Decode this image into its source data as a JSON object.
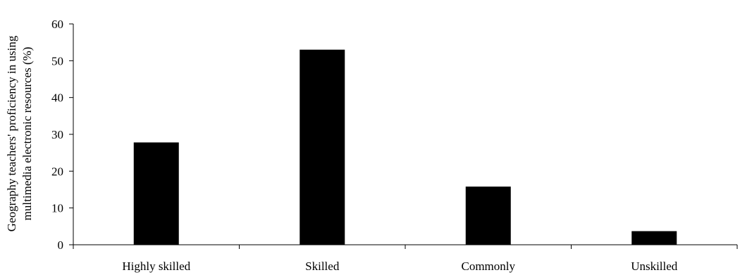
{
  "chart_data": {
    "type": "bar",
    "categories": [
      "Highly skilled",
      "Skilled",
      "Commonly",
      "Unskilled"
    ],
    "values": [
      27.8,
      53.0,
      15.8,
      3.7
    ],
    "title": "",
    "xlabel": "",
    "ylabel_lines": [
      "Geography teachers' proficiency in using",
      "multimedia electronic resources (%)"
    ],
    "ylim": [
      0,
      60
    ],
    "yticks": [
      0,
      10,
      20,
      30,
      40,
      50,
      60
    ],
    "grid": false,
    "legend": "none",
    "bar_color": "#000000"
  }
}
